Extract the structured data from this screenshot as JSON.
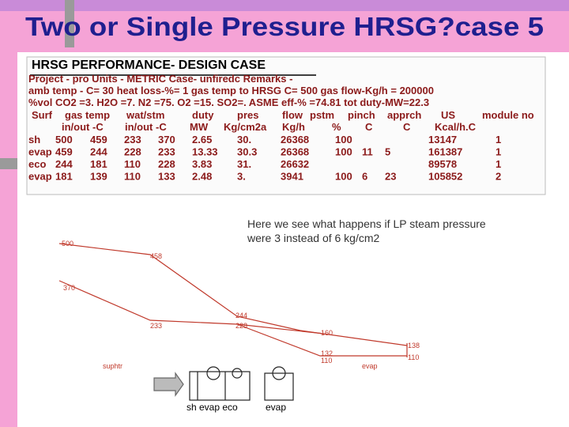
{
  "title": "Two or Single Pressure HRSG?case 5",
  "table": {
    "heading": "HRSG PERFORMANCE- DESIGN CASE",
    "info_lines": [
      "Project - pro  Units -  METRIC Case- unfiredc Remarks -",
      "amb temp - C= 30  heat loss-%= 1  gas temp to HRSG C= 500  gas flow-Kg/h = 200000",
      "%vol CO2 =3. H2O =7. N2 =75. O2 =15. SO2=.  ASME eff-% =74.81 tot duty-MW=22.3"
    ],
    "header1": [
      "Surf",
      "gas temp",
      "wat/stm",
      "duty",
      "pres",
      "flow",
      "pstm",
      "pinch",
      "apprch",
      "US",
      "module no"
    ],
    "header2": [
      "in/out -C",
      "in/out -C",
      "MW",
      "Kg/cm2a",
      "Kg/h",
      "%",
      "C",
      "C",
      "Kcal/h.C"
    ],
    "rows": [
      [
        "sh",
        "500",
        "459",
        "233",
        "370",
        "2.65",
        "30.",
        "26368",
        "100",
        "",
        "",
        "13147",
        "1"
      ],
      [
        "evap",
        "459",
        "244",
        "228",
        "233",
        "13.33",
        "30.3",
        "26368",
        "100",
        "11",
        "5",
        "161387",
        "1"
      ],
      [
        "eco",
        "244",
        "181",
        "110",
        "228",
        "3.83",
        "31.",
        "26632",
        "",
        "",
        "",
        "89578",
        "1"
      ],
      [
        "evap",
        "181",
        "139",
        "110",
        "133",
        "2.48",
        "3.",
        "3941",
        "100",
        "6",
        "23",
        "105852",
        "2"
      ]
    ]
  },
  "annotation": "Here we see what happens if LP steam pressure were 3 instead of 6 kg/cm2",
  "profile": {
    "labels": [
      "500",
      "458",
      "370",
      "233",
      "244",
      "228",
      "160",
      "132",
      "110",
      "138",
      "110"
    ],
    "sections": [
      "suphtr",
      "evap"
    ]
  },
  "schematic": {
    "labels": [
      "sh evap eco",
      "evap"
    ]
  }
}
